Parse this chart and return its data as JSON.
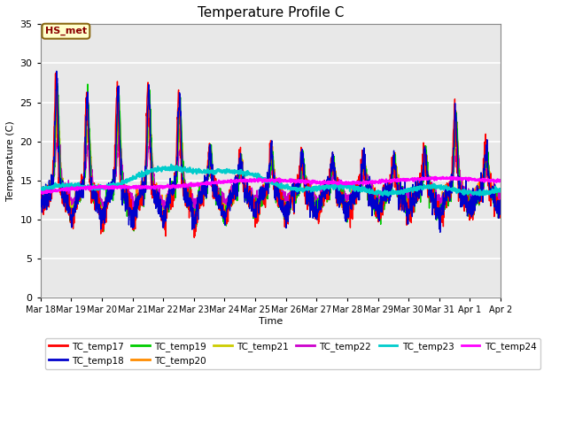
{
  "title": "Temperature Profile C",
  "xlabel": "Time",
  "ylabel": "Temperature (C)",
  "ylim": [
    0,
    35
  ],
  "annotation": "HS_met",
  "annotation_color": "#8B0000",
  "annotation_bg": "#FFFFCC",
  "annotation_border": "#8B6914",
  "series_colors": {
    "TC_temp17": "#FF0000",
    "TC_temp18": "#0000CC",
    "TC_temp19": "#00CC00",
    "TC_temp20": "#FF8C00",
    "TC_temp21": "#CCCC00",
    "TC_temp22": "#CC00CC",
    "TC_temp23": "#00CCCC",
    "TC_temp24": "#FF00FF"
  },
  "x_tick_labels": [
    "Mar 18",
    "Mar 19",
    "Mar 20",
    "Mar 21",
    "Mar 22",
    "Mar 23",
    "Mar 24",
    "Mar 25",
    "Mar 26",
    "Mar 27",
    "Mar 28",
    "Mar 29",
    "Mar 30",
    "Mar 31",
    "Apr 1",
    "Apr 2"
  ],
  "yticks": [
    0,
    5,
    10,
    15,
    20,
    25,
    30,
    35
  ],
  "background_color": "#E8E8E8",
  "grid_color": "#FFFFFF",
  "fig_color": "#FFFFFF",
  "linewidth": 1.0
}
